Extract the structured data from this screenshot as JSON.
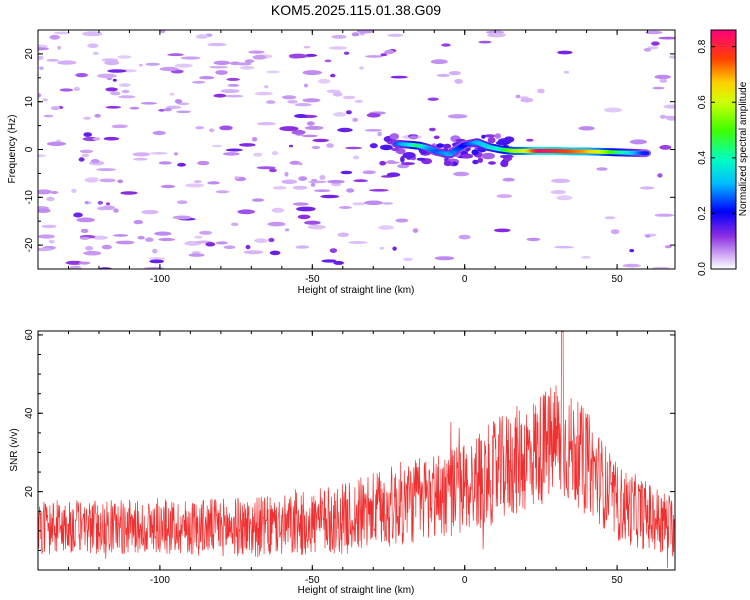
{
  "title": "KOM5.2025.115.01.38.G09",
  "chart_data": [
    {
      "type": "heatmap",
      "xlabel": "Height of straight line (km)",
      "ylabel": "Frequency (Hz)",
      "xlim": [
        -140,
        69
      ],
      "ylim": [
        -25,
        25
      ],
      "xticks": [
        -100,
        -50,
        0,
        50
      ],
      "yticks": [
        -20,
        -10,
        0,
        10,
        20
      ],
      "colorbar": {
        "label": "Normalized spectral amplitude",
        "range": [
          0.0,
          0.86
        ],
        "ticks": [
          "0.0",
          "0.2",
          "0.4",
          "0.6",
          "0.8"
        ],
        "tick_values": [
          0.0,
          0.2,
          0.4,
          0.6,
          0.8
        ]
      },
      "strong_track": [
        {
          "x": -22,
          "y": 1.2,
          "v": 0.25
        },
        {
          "x": -18,
          "y": 1.0,
          "v": 0.35
        },
        {
          "x": -15,
          "y": 0.8,
          "v": 0.45
        },
        {
          "x": -12,
          "y": 0.3,
          "v": 0.3
        },
        {
          "x": -9,
          "y": -0.5,
          "v": 0.25
        },
        {
          "x": -5,
          "y": -1.0,
          "v": 0.3
        },
        {
          "x": 0,
          "y": 1.0,
          "v": 0.2
        },
        {
          "x": 4,
          "y": 1.5,
          "v": 0.3
        },
        {
          "x": 8,
          "y": 0.5,
          "v": 0.35
        },
        {
          "x": 12,
          "y": 0.0,
          "v": 0.4
        },
        {
          "x": 16,
          "y": -0.3,
          "v": 0.55
        },
        {
          "x": 20,
          "y": -0.3,
          "v": 0.6
        },
        {
          "x": 25,
          "y": -0.3,
          "v": 0.85
        },
        {
          "x": 30,
          "y": -0.3,
          "v": 0.8
        },
        {
          "x": 35,
          "y": -0.4,
          "v": 0.75
        },
        {
          "x": 40,
          "y": -0.4,
          "v": 0.7
        },
        {
          "x": 45,
          "y": -0.5,
          "v": 0.6
        },
        {
          "x": 50,
          "y": -0.6,
          "v": 0.45
        },
        {
          "x": 55,
          "y": -0.7,
          "v": 0.35
        },
        {
          "x": 60,
          "y": -0.8,
          "v": 0.2
        }
      ],
      "background_level": 0.06
    },
    {
      "type": "line",
      "xlabel": "Height of straight line (km)",
      "ylabel": "SNR (v/v)",
      "xlim": [
        -140,
        69
      ],
      "ylim": [
        0,
        61
      ],
      "xticks": [
        -100,
        -50,
        0,
        50
      ],
      "yticks": [
        20,
        40,
        60
      ],
      "color": "#f03030",
      "envelope": [
        {
          "x": -140,
          "mean": 11,
          "spread": 7
        },
        {
          "x": -100,
          "mean": 11,
          "spread": 7
        },
        {
          "x": -60,
          "mean": 11,
          "spread": 8
        },
        {
          "x": -40,
          "mean": 13,
          "spread": 9
        },
        {
          "x": -20,
          "mean": 17,
          "spread": 11
        },
        {
          "x": 0,
          "mean": 21,
          "spread": 12
        },
        {
          "x": 15,
          "mean": 27,
          "spread": 14
        },
        {
          "x": 30,
          "mean": 33,
          "spread": 15
        },
        {
          "x": 40,
          "mean": 28,
          "spread": 13
        },
        {
          "x": 50,
          "mean": 17,
          "spread": 10
        },
        {
          "x": 69,
          "mean": 11,
          "spread": 8
        }
      ],
      "peak": {
        "x": 32,
        "y": 61
      }
    }
  ]
}
